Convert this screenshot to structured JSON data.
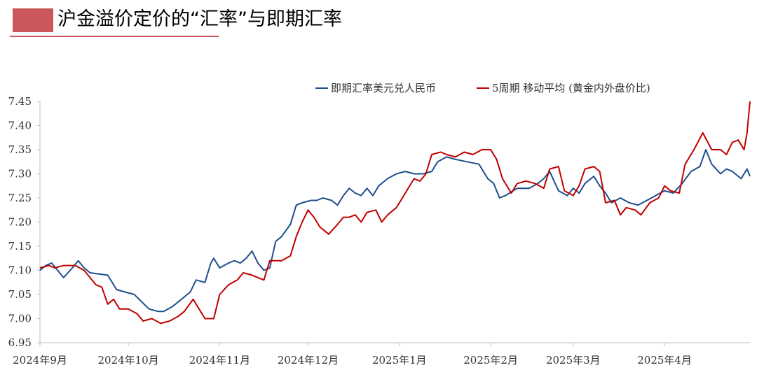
{
  "title": "沪金溢价定价的“汇率”与即期汇率",
  "colors": {
    "accent": "#c9575c",
    "spot": "#1f4e8c",
    "gold": "#c00000"
  },
  "chart_data": {
    "type": "line",
    "title": "沪金溢价定价的“汇率”与即期汇率",
    "xlabel": "",
    "ylabel": "",
    "ylim": [
      6.95,
      7.45
    ],
    "yticks": [
      "6.95",
      "7.00",
      "7.05",
      "7.10",
      "7.15",
      "7.20",
      "7.25",
      "7.30",
      "7.35",
      "7.40",
      "7.45"
    ],
    "xlim": [
      "2024-09-01",
      "2025-04-30"
    ],
    "xticks": [
      {
        "date": "2024-09-01",
        "label": "2024年9月"
      },
      {
        "date": "2024-10-01",
        "label": "2024年10月"
      },
      {
        "date": "2024-11-01",
        "label": "2024年11月"
      },
      {
        "date": "2024-12-01",
        "label": "2024年12月"
      },
      {
        "date": "2025-01-01",
        "label": "2025年1月"
      },
      {
        "date": "2025-02-01",
        "label": "2025年2月"
      },
      {
        "date": "2025-03-01",
        "label": "2025年3月"
      },
      {
        "date": "2025-04-01",
        "label": "2025年4月"
      }
    ],
    "grid": false,
    "legend": "top",
    "series": [
      {
        "name": "即期汇率美元兑人民币",
        "color": "#1f4e8c",
        "points": [
          [
            "2024-09-01",
            7.1
          ],
          [
            "2024-09-03",
            7.11
          ],
          [
            "2024-09-05",
            7.115
          ],
          [
            "2024-09-07",
            7.1
          ],
          [
            "2024-09-09",
            7.085
          ],
          [
            "2024-09-12",
            7.105
          ],
          [
            "2024-09-14",
            7.12
          ],
          [
            "2024-09-16",
            7.105
          ],
          [
            "2024-09-18",
            7.095
          ],
          [
            "2024-09-24",
            7.09
          ],
          [
            "2024-09-27",
            7.06
          ],
          [
            "2024-09-30",
            7.055
          ],
          [
            "2024-10-03",
            7.05
          ],
          [
            "2024-10-08",
            7.02
          ],
          [
            "2024-10-11",
            7.015
          ],
          [
            "2024-10-13",
            7.015
          ],
          [
            "2024-10-16",
            7.025
          ],
          [
            "2024-10-19",
            7.04
          ],
          [
            "2024-10-22",
            7.055
          ],
          [
            "2024-10-24",
            7.08
          ],
          [
            "2024-10-27",
            7.075
          ],
          [
            "2024-10-29",
            7.115
          ],
          [
            "2024-10-30",
            7.125
          ],
          [
            "2024-11-01",
            7.105
          ],
          [
            "2024-11-04",
            7.115
          ],
          [
            "2024-11-06",
            7.12
          ],
          [
            "2024-11-08",
            7.115
          ],
          [
            "2024-11-10",
            7.125
          ],
          [
            "2024-11-12",
            7.14
          ],
          [
            "2024-11-14",
            7.115
          ],
          [
            "2024-11-16",
            7.1
          ],
          [
            "2024-11-18",
            7.105
          ],
          [
            "2024-11-20",
            7.16
          ],
          [
            "2024-11-22",
            7.17
          ],
          [
            "2024-11-25",
            7.195
          ],
          [
            "2024-11-27",
            7.235
          ],
          [
            "2024-11-29",
            7.24
          ],
          [
            "2024-12-02",
            7.245
          ],
          [
            "2024-12-04",
            7.245
          ],
          [
            "2024-12-06",
            7.25
          ],
          [
            "2024-12-09",
            7.245
          ],
          [
            "2024-12-11",
            7.235
          ],
          [
            "2024-12-13",
            7.255
          ],
          [
            "2024-12-15",
            7.27
          ],
          [
            "2024-12-17",
            7.26
          ],
          [
            "2024-12-19",
            7.255
          ],
          [
            "2024-12-21",
            7.27
          ],
          [
            "2024-12-23",
            7.255
          ],
          [
            "2024-12-25",
            7.275
          ],
          [
            "2024-12-28",
            7.29
          ],
          [
            "2024-12-31",
            7.3
          ],
          [
            "2025-01-03",
            7.305
          ],
          [
            "2025-01-06",
            7.3
          ],
          [
            "2025-01-09",
            7.3
          ],
          [
            "2025-01-12",
            7.305
          ],
          [
            "2025-01-14",
            7.325
          ],
          [
            "2025-01-17",
            7.335
          ],
          [
            "2025-01-20",
            7.33
          ],
          [
            "2025-01-24",
            7.325
          ],
          [
            "2025-01-28",
            7.32
          ],
          [
            "2025-01-31",
            7.29
          ],
          [
            "2025-02-02",
            7.28
          ],
          [
            "2025-02-04",
            7.25
          ],
          [
            "2025-02-06",
            7.255
          ],
          [
            "2025-02-10",
            7.27
          ],
          [
            "2025-02-14",
            7.27
          ],
          [
            "2025-02-17",
            7.28
          ],
          [
            "2025-02-19",
            7.29
          ],
          [
            "2025-02-21",
            7.305
          ],
          [
            "2025-02-24",
            7.265
          ],
          [
            "2025-02-27",
            7.255
          ],
          [
            "2025-03-01",
            7.27
          ],
          [
            "2025-03-03",
            7.26
          ],
          [
            "2025-03-05",
            7.28
          ],
          [
            "2025-03-08",
            7.295
          ],
          [
            "2025-03-10",
            7.275
          ],
          [
            "2025-03-12",
            7.26
          ],
          [
            "2025-03-14",
            7.24
          ],
          [
            "2025-03-17",
            7.25
          ],
          [
            "2025-03-20",
            7.24
          ],
          [
            "2025-03-23",
            7.235
          ],
          [
            "2025-03-26",
            7.245
          ],
          [
            "2025-03-29",
            7.255
          ],
          [
            "2025-04-01",
            7.265
          ],
          [
            "2025-04-04",
            7.26
          ],
          [
            "2025-04-07",
            7.28
          ],
          [
            "2025-04-10",
            7.305
          ],
          [
            "2025-04-13",
            7.315
          ],
          [
            "2025-04-15",
            7.35
          ],
          [
            "2025-04-17",
            7.32
          ],
          [
            "2025-04-20",
            7.3
          ],
          [
            "2025-04-22",
            7.31
          ],
          [
            "2025-04-24",
            7.305
          ],
          [
            "2025-04-27",
            7.29
          ],
          [
            "2025-04-29",
            7.31
          ],
          [
            "2025-04-30",
            7.295
          ]
        ]
      },
      {
        "name": "5周期 移动平均 (黄金内外盘价比)",
        "color": "#c00000",
        "points": [
          [
            "2024-09-01",
            7.105
          ],
          [
            "2024-09-04",
            7.11
          ],
          [
            "2024-09-06",
            7.105
          ],
          [
            "2024-09-09",
            7.11
          ],
          [
            "2024-09-13",
            7.11
          ],
          [
            "2024-09-16",
            7.1
          ],
          [
            "2024-09-18",
            7.085
          ],
          [
            "2024-09-20",
            7.07
          ],
          [
            "2024-09-22",
            7.065
          ],
          [
            "2024-09-24",
            7.03
          ],
          [
            "2024-09-26",
            7.04
          ],
          [
            "2024-09-28",
            7.02
          ],
          [
            "2024-10-01",
            7.02
          ],
          [
            "2024-10-04",
            7.01
          ],
          [
            "2024-10-06",
            6.995
          ],
          [
            "2024-10-09",
            7.0
          ],
          [
            "2024-10-12",
            6.99
          ],
          [
            "2024-10-15",
            6.995
          ],
          [
            "2024-10-18",
            7.005
          ],
          [
            "2024-10-20",
            7.015
          ],
          [
            "2024-10-23",
            7.04
          ],
          [
            "2024-10-25",
            7.02
          ],
          [
            "2024-10-27",
            7.0
          ],
          [
            "2024-10-30",
            7.0
          ],
          [
            "2024-11-01",
            7.05
          ],
          [
            "2024-11-04",
            7.07
          ],
          [
            "2024-11-07",
            7.08
          ],
          [
            "2024-11-09",
            7.095
          ],
          [
            "2024-11-12",
            7.09
          ],
          [
            "2024-11-14",
            7.085
          ],
          [
            "2024-11-16",
            7.08
          ],
          [
            "2024-11-18",
            7.12
          ],
          [
            "2024-11-22",
            7.12
          ],
          [
            "2024-11-25",
            7.13
          ],
          [
            "2024-11-27",
            7.17
          ],
          [
            "2024-11-29",
            7.2
          ],
          [
            "2024-12-01",
            7.225
          ],
          [
            "2024-12-03",
            7.21
          ],
          [
            "2024-12-05",
            7.19
          ],
          [
            "2024-12-08",
            7.175
          ],
          [
            "2024-12-11",
            7.195
          ],
          [
            "2024-12-13",
            7.21
          ],
          [
            "2024-12-15",
            7.21
          ],
          [
            "2024-12-17",
            7.215
          ],
          [
            "2024-12-19",
            7.2
          ],
          [
            "2024-12-21",
            7.22
          ],
          [
            "2024-12-24",
            7.225
          ],
          [
            "2024-12-26",
            7.2
          ],
          [
            "2024-12-28",
            7.215
          ],
          [
            "2024-12-31",
            7.23
          ],
          [
            "2025-01-03",
            7.26
          ],
          [
            "2025-01-06",
            7.29
          ],
          [
            "2025-01-08",
            7.285
          ],
          [
            "2025-01-10",
            7.3
          ],
          [
            "2025-01-12",
            7.34
          ],
          [
            "2025-01-15",
            7.345
          ],
          [
            "2025-01-17",
            7.34
          ],
          [
            "2025-01-20",
            7.335
          ],
          [
            "2025-01-23",
            7.345
          ],
          [
            "2025-01-26",
            7.34
          ],
          [
            "2025-01-29",
            7.35
          ],
          [
            "2025-02-01",
            7.35
          ],
          [
            "2025-02-03",
            7.33
          ],
          [
            "2025-02-05",
            7.29
          ],
          [
            "2025-02-08",
            7.26
          ],
          [
            "2025-02-10",
            7.28
          ],
          [
            "2025-02-13",
            7.285
          ],
          [
            "2025-02-16",
            7.28
          ],
          [
            "2025-02-19",
            7.27
          ],
          [
            "2025-02-21",
            7.31
          ],
          [
            "2025-02-24",
            7.315
          ],
          [
            "2025-02-26",
            7.265
          ],
          [
            "2025-03-01",
            7.255
          ],
          [
            "2025-03-03",
            7.275
          ],
          [
            "2025-03-05",
            7.31
          ],
          [
            "2025-03-08",
            7.315
          ],
          [
            "2025-03-10",
            7.305
          ],
          [
            "2025-03-12",
            7.24
          ],
          [
            "2025-03-15",
            7.245
          ],
          [
            "2025-03-17",
            7.215
          ],
          [
            "2025-03-19",
            7.23
          ],
          [
            "2025-03-22",
            7.225
          ],
          [
            "2025-03-24",
            7.215
          ],
          [
            "2025-03-27",
            7.24
          ],
          [
            "2025-03-30",
            7.25
          ],
          [
            "2025-04-01",
            7.275
          ],
          [
            "2025-04-03",
            7.265
          ],
          [
            "2025-04-06",
            7.26
          ],
          [
            "2025-04-08",
            7.32
          ],
          [
            "2025-04-11",
            7.35
          ],
          [
            "2025-04-14",
            7.385
          ],
          [
            "2025-04-17",
            7.35
          ],
          [
            "2025-04-20",
            7.35
          ],
          [
            "2025-04-22",
            7.34
          ],
          [
            "2025-04-24",
            7.365
          ],
          [
            "2025-04-26",
            7.37
          ],
          [
            "2025-04-28",
            7.35
          ],
          [
            "2025-04-29",
            7.385
          ],
          [
            "2025-04-30",
            7.45
          ]
        ]
      }
    ]
  }
}
